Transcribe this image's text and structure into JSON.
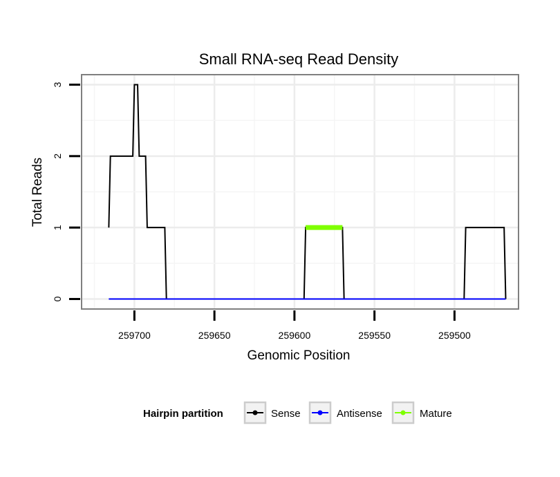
{
  "chart_data": {
    "type": "line",
    "title": "Small RNA-seq Read Density",
    "xlabel": "Genomic Position",
    "ylabel": "Total Reads",
    "xlim": [
      259733,
      259460
    ],
    "x_reversed": true,
    "ylim": [
      -0.14,
      3.14
    ],
    "x_ticks": [
      259700,
      259650,
      259600,
      259550,
      259500
    ],
    "x_tick_labels": [
      "259700",
      "259650",
      "259600",
      "259550",
      "259500"
    ],
    "y_ticks": [
      0,
      1,
      2,
      3
    ],
    "y_tick_labels": [
      "0",
      "1",
      "2",
      "3"
    ],
    "grid": true,
    "legend": {
      "title": "Hairpin partition",
      "position": "bottom",
      "entries": [
        {
          "label": "Sense",
          "color": "#000000"
        },
        {
          "label": "Antisense",
          "color": "#0000ff"
        },
        {
          "label": "Mature",
          "color": "#7fff00"
        }
      ]
    },
    "series": [
      {
        "name": "Sense",
        "color": "#000000",
        "x": [
          259716,
          259715,
          259701,
          259700,
          259698,
          259697,
          259693,
          259692,
          259681,
          259680,
          259594,
          259593,
          259570,
          259569,
          259494,
          259493,
          259469,
          259468
        ],
        "y": [
          1,
          2,
          2,
          3,
          3,
          2,
          2,
          1,
          1,
          0,
          0,
          1,
          1,
          0,
          0,
          1,
          1,
          0
        ]
      },
      {
        "name": "Antisense",
        "color": "#0000ff",
        "x": [
          259716,
          259468
        ],
        "y": [
          0,
          0
        ]
      },
      {
        "name": "Mature",
        "color": "#7fff00",
        "x": [
          259593,
          259570
        ],
        "y": [
          1,
          1
        ]
      }
    ]
  }
}
